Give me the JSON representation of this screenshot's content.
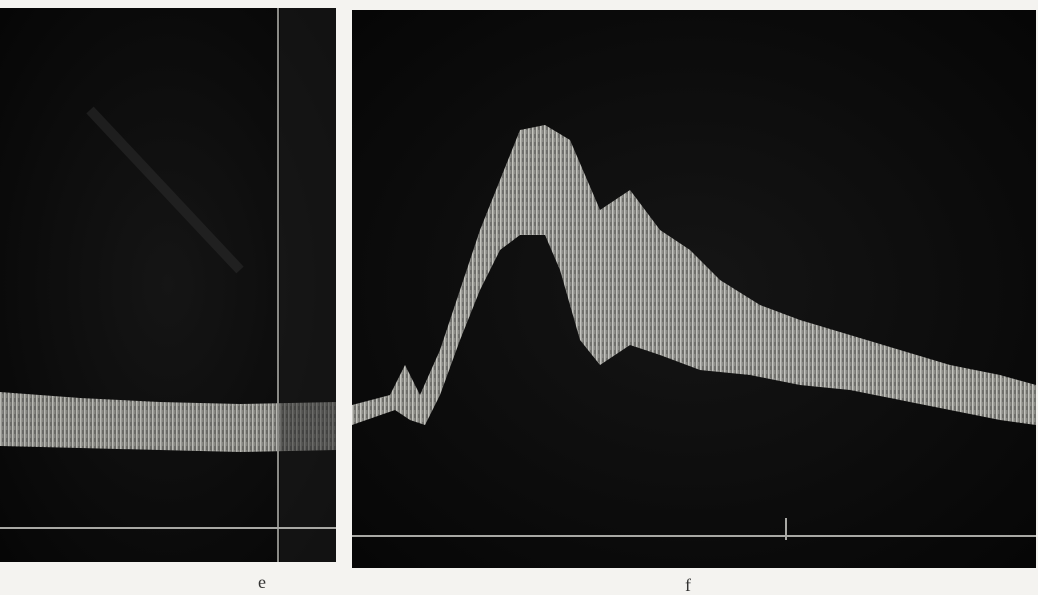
{
  "panels": [
    {
      "label": "e"
    },
    {
      "label": "f"
    }
  ]
}
